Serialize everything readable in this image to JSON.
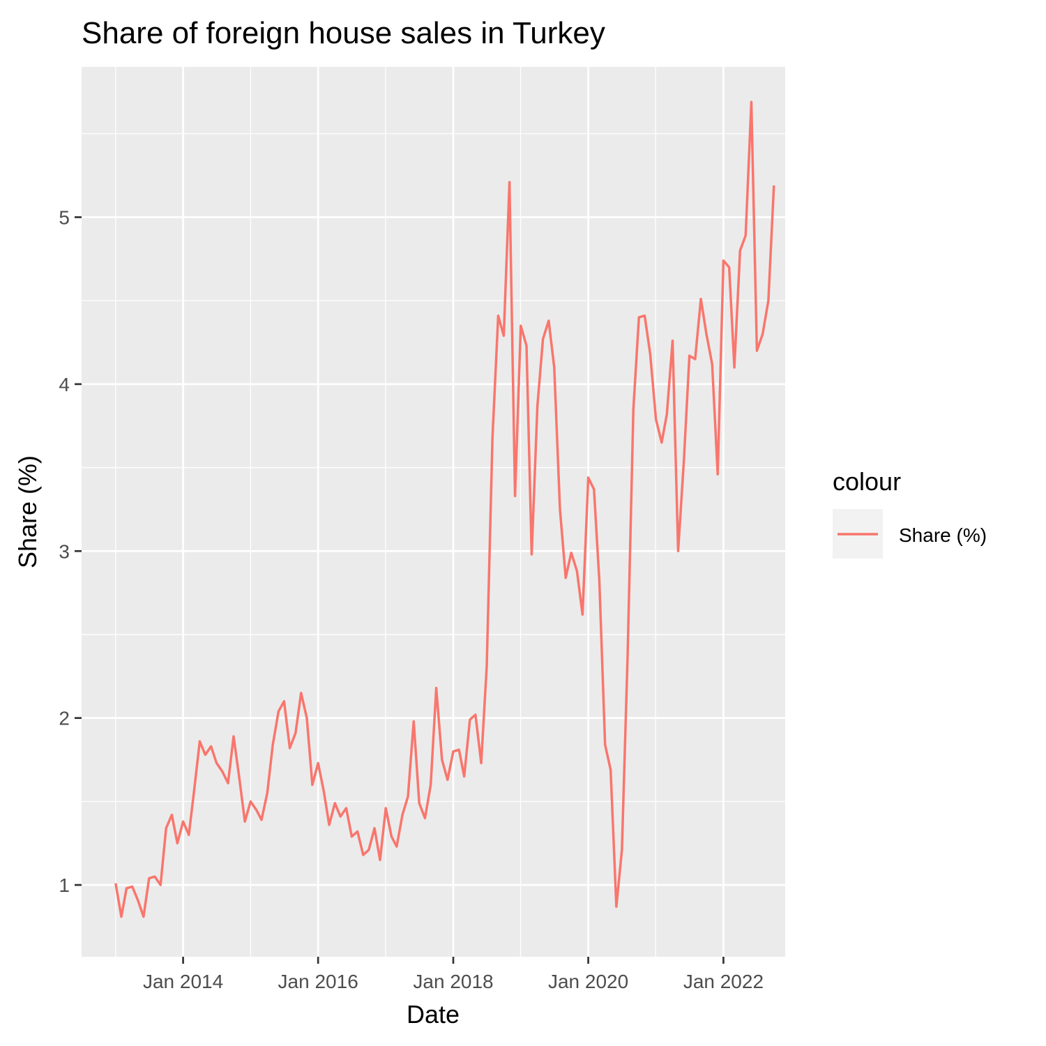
{
  "chart_data": {
    "type": "line",
    "title": "Share of foreign house sales in Turkey",
    "xlabel": "Date",
    "ylabel": "Share (%)",
    "x_ticks": [
      "Jan 2014",
      "Jan 2016",
      "Jan 2018",
      "Jan 2020",
      "Jan 2022"
    ],
    "y_ticks": [
      "1",
      "2",
      "3",
      "4",
      "5"
    ],
    "x_range": [
      "2012-07-01",
      "2022-12-01"
    ],
    "ylim": [
      0.57,
      5.9
    ],
    "grid": true,
    "legend": {
      "title": "colour",
      "position": "right"
    },
    "series": [
      {
        "name": "Share (%)",
        "color": "#F8766D",
        "x": [
          "2013-01",
          "2013-02",
          "2013-03",
          "2013-04",
          "2013-05",
          "2013-06",
          "2013-07",
          "2013-08",
          "2013-09",
          "2013-10",
          "2013-11",
          "2013-12",
          "2014-01",
          "2014-02",
          "2014-03",
          "2014-04",
          "2014-05",
          "2014-06",
          "2014-07",
          "2014-08",
          "2014-09",
          "2014-10",
          "2014-11",
          "2014-12",
          "2015-01",
          "2015-02",
          "2015-03",
          "2015-04",
          "2015-05",
          "2015-06",
          "2015-07",
          "2015-08",
          "2015-09",
          "2015-10",
          "2015-11",
          "2015-12",
          "2016-01",
          "2016-02",
          "2016-03",
          "2016-04",
          "2016-05",
          "2016-06",
          "2016-07",
          "2016-08",
          "2016-09",
          "2016-10",
          "2016-11",
          "2016-12",
          "2017-01",
          "2017-02",
          "2017-03",
          "2017-04",
          "2017-05",
          "2017-06",
          "2017-07",
          "2017-08",
          "2017-09",
          "2017-10",
          "2017-11",
          "2017-12",
          "2018-01",
          "2018-02",
          "2018-03",
          "2018-04",
          "2018-05",
          "2018-06",
          "2018-07",
          "2018-08",
          "2018-09",
          "2018-10",
          "2018-11",
          "2018-12",
          "2019-01",
          "2019-02",
          "2019-03",
          "2019-04",
          "2019-05",
          "2019-06",
          "2019-07",
          "2019-08",
          "2019-09",
          "2019-10",
          "2019-11",
          "2019-12",
          "2020-01",
          "2020-02",
          "2020-03",
          "2020-04",
          "2020-05",
          "2020-06",
          "2020-07",
          "2020-08",
          "2020-09",
          "2020-10",
          "2020-11",
          "2020-12",
          "2021-01",
          "2021-02",
          "2021-03",
          "2021-04",
          "2021-05",
          "2021-06",
          "2021-07",
          "2021-08",
          "2021-09",
          "2021-10",
          "2021-11",
          "2021-12",
          "2022-01",
          "2022-02",
          "2022-03",
          "2022-04",
          "2022-05",
          "2022-06",
          "2022-07",
          "2022-08",
          "2022-09",
          "2022-10"
        ],
        "values": [
          1.01,
          0.81,
          0.98,
          0.99,
          0.91,
          0.81,
          1.04,
          1.05,
          1.0,
          1.34,
          1.42,
          1.25,
          1.38,
          1.3,
          1.56,
          1.86,
          1.78,
          1.83,
          1.73,
          1.68,
          1.61,
          1.89,
          1.64,
          1.38,
          1.5,
          1.45,
          1.39,
          1.55,
          1.84,
          2.04,
          2.1,
          1.82,
          1.91,
          2.15,
          2.0,
          1.6,
          1.73,
          1.56,
          1.36,
          1.49,
          1.41,
          1.46,
          1.29,
          1.32,
          1.18,
          1.21,
          1.34,
          1.15,
          1.46,
          1.29,
          1.23,
          1.42,
          1.53,
          1.98,
          1.49,
          1.4,
          1.6,
          2.18,
          1.75,
          1.63,
          1.8,
          1.81,
          1.65,
          1.99,
          2.02,
          1.73,
          2.31,
          3.68,
          4.41,
          4.29,
          5.21,
          3.33,
          4.35,
          4.23,
          2.98,
          3.87,
          4.27,
          4.38,
          4.1,
          3.25,
          2.84,
          2.99,
          2.88,
          2.62,
          3.44,
          3.37,
          2.82,
          1.84,
          1.69,
          0.87,
          1.21,
          2.38,
          3.85,
          4.4,
          4.41,
          4.18,
          3.79,
          3.65,
          3.82,
          4.26,
          3.0,
          3.54,
          4.17,
          4.15,
          4.51,
          4.3,
          4.12,
          3.46,
          4.74,
          4.7,
          4.1,
          4.8,
          4.89,
          5.69,
          4.2,
          4.3,
          4.5,
          5.19
        ]
      }
    ]
  }
}
